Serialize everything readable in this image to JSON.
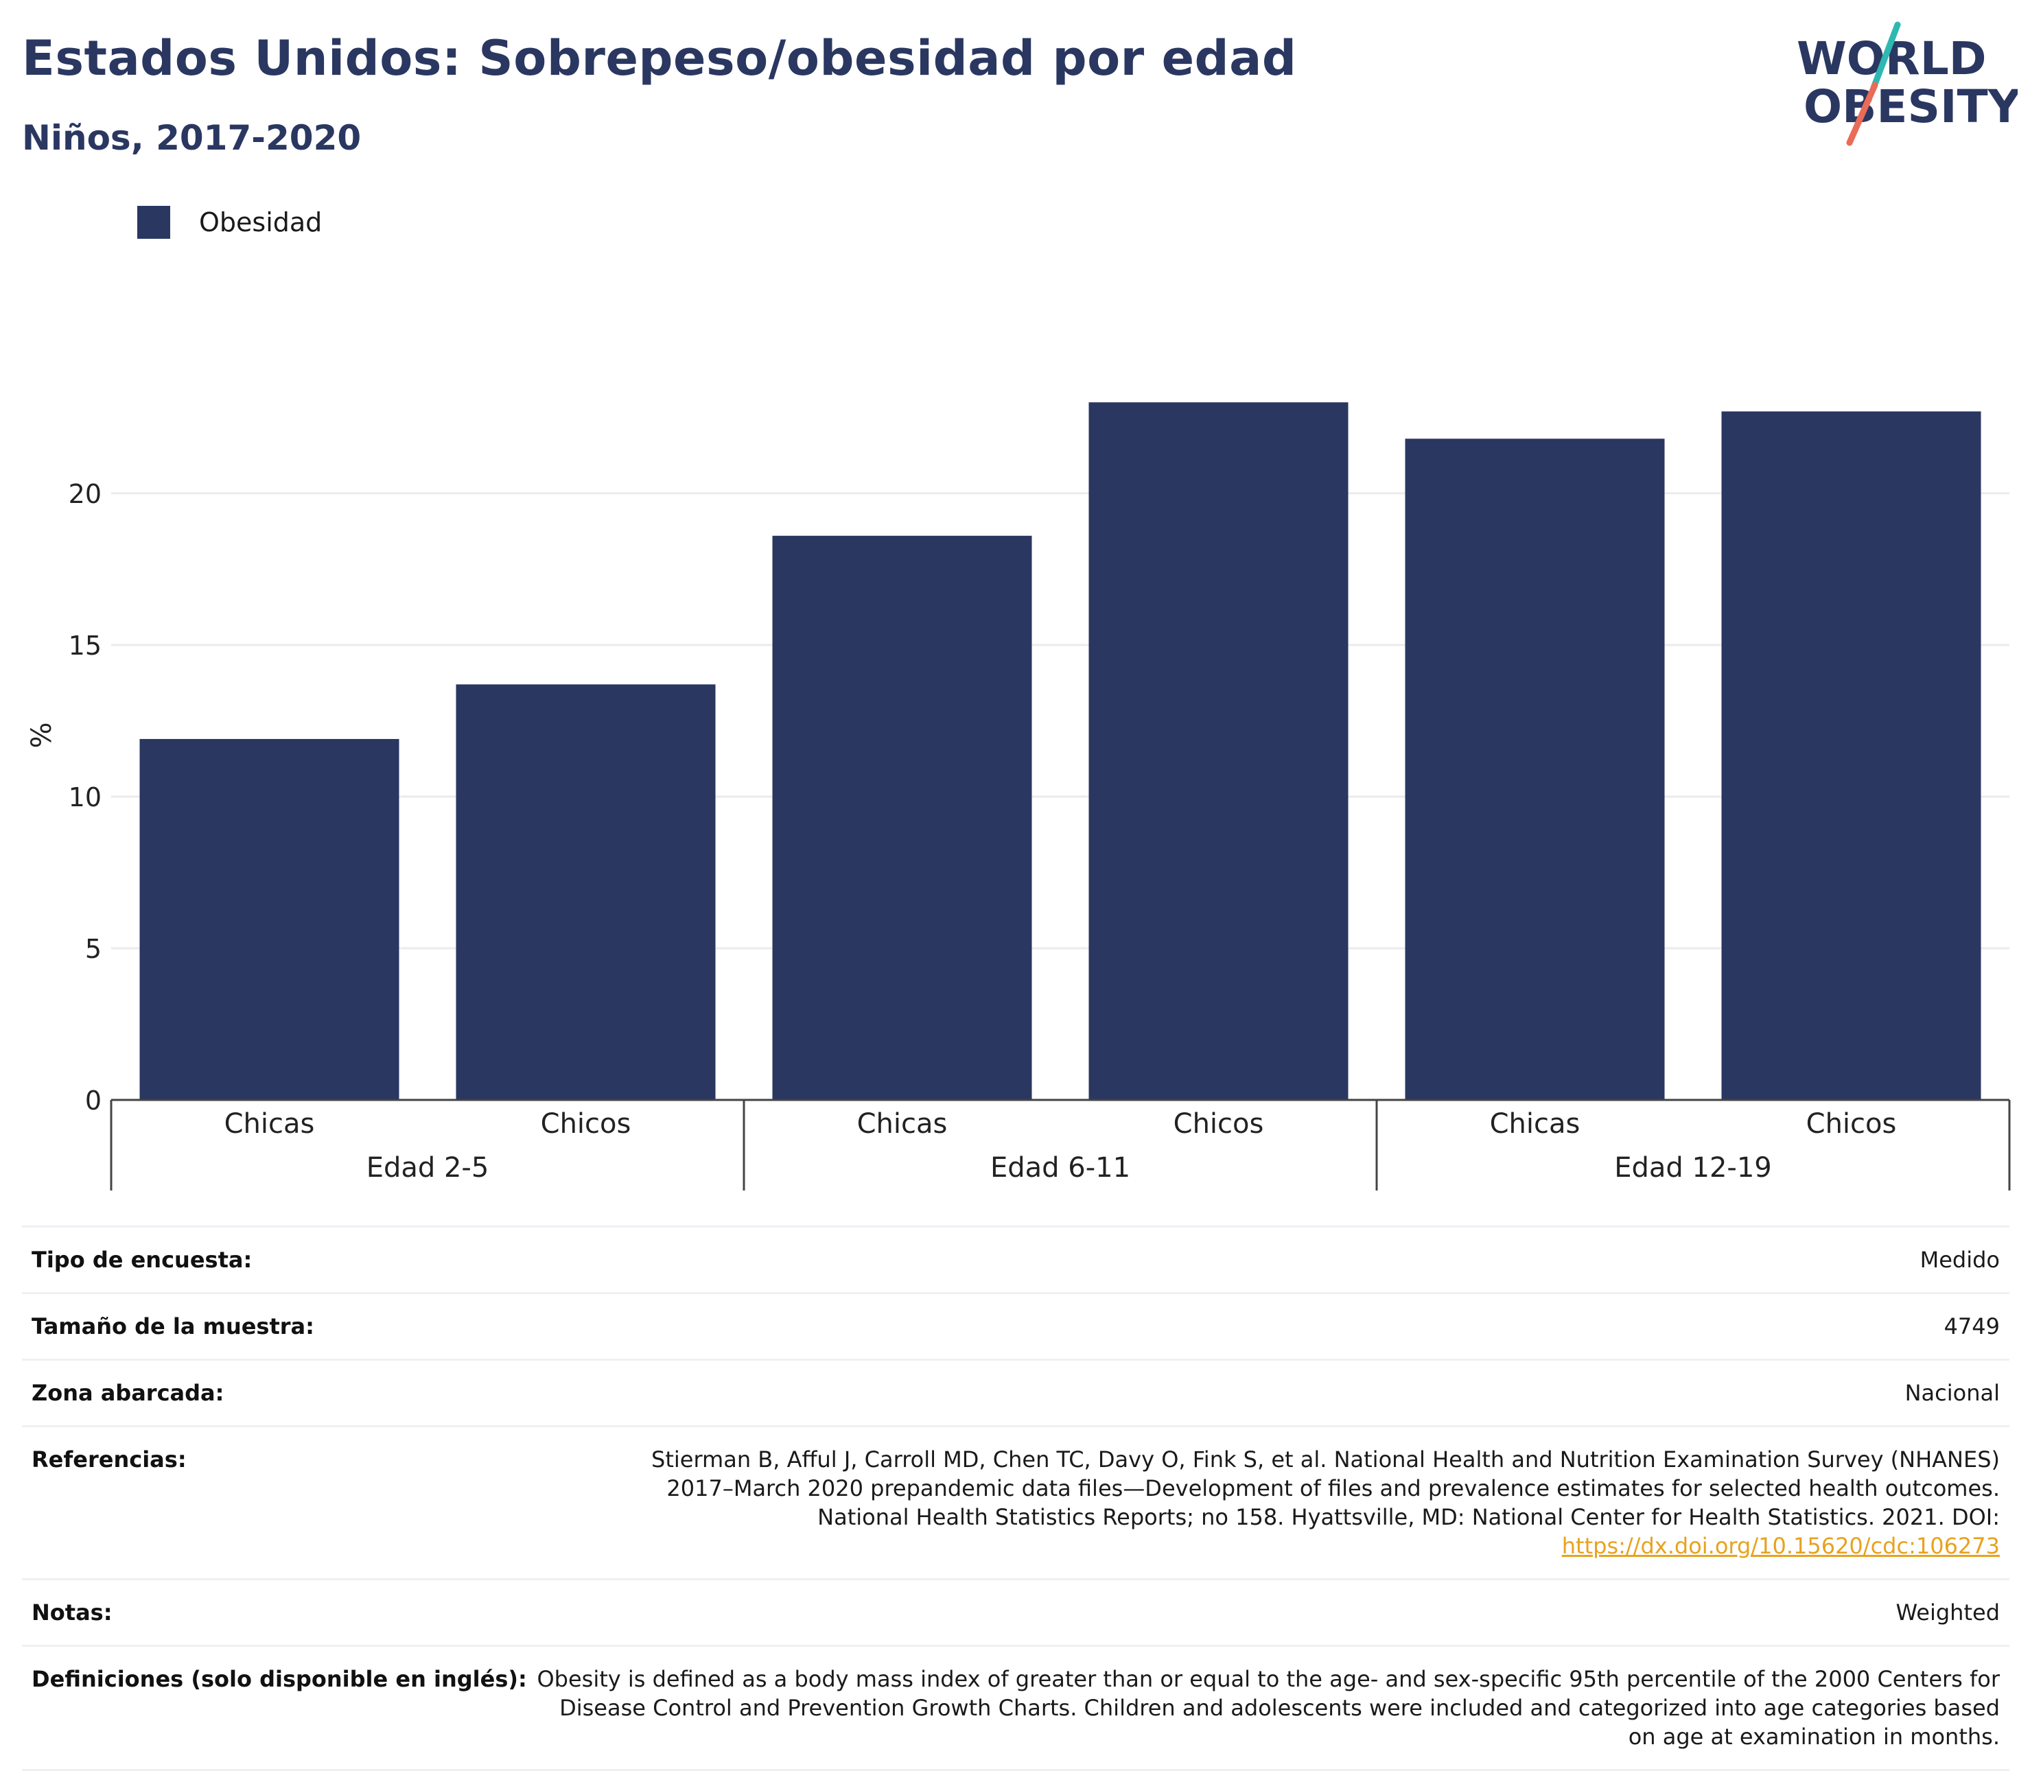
{
  "header": {
    "title": "Estados Unidos: Sobrepeso/obesidad por edad",
    "subtitle": "Niños, 2017-2020"
  },
  "logo": {
    "line1": "WORLD",
    "line2": "OBESITY",
    "icon": "world-obesity-logo"
  },
  "legend": {
    "label": "Obesidad",
    "color": "#2a3761"
  },
  "chart_data": {
    "type": "bar",
    "title": "Estados Unidos: Sobrepeso/obesidad por edad",
    "subtitle": "Niños, 2017-2020",
    "ylabel": "%",
    "ylim": [
      0,
      24.5
    ],
    "yticks": [
      0,
      5,
      10,
      15,
      20
    ],
    "grid": true,
    "legend_position": "top-left",
    "bar_color": "#2a3761",
    "groups": [
      {
        "label": "Edad 2-5",
        "categories": [
          "Chicas",
          "Chicos"
        ],
        "values": [
          11.9,
          13.7
        ]
      },
      {
        "label": "Edad 6-11",
        "categories": [
          "Chicas",
          "Chicos"
        ],
        "values": [
          18.6,
          23.0
        ]
      },
      {
        "label": "Edad 12-19",
        "categories": [
          "Chicas",
          "Chicos"
        ],
        "values": [
          21.8,
          22.7
        ]
      }
    ],
    "series": [
      {
        "name": "Obesidad",
        "values": [
          11.9,
          13.7,
          18.6,
          23.0,
          21.8,
          22.7
        ]
      }
    ]
  },
  "meta": {
    "survey_type": {
      "label": "Tipo de encuesta:",
      "value": "Medido"
    },
    "sample_size": {
      "label": "Tamaño de la muestra:",
      "value": "4749"
    },
    "area": {
      "label": "Zona abarcada:",
      "value": "Nacional"
    },
    "references": {
      "label": "Referencias:",
      "text": "Stierman B, Afful J, Carroll MD, Chen TC, Davy O, Fink S, et al. National Health and Nutrition Examination Survey (NHANES) 2017–March 2020 prepandemic data files—Development of files and prevalence estimates for selected health outcomes. National Health Statistics Reports; no 158. Hyattsville, MD: National Center for Health Statistics. 2021. DOI:",
      "link": "https://dx.doi.org/10.15620/cdc:106273"
    },
    "notes": {
      "label": "Notas:",
      "value": "Weighted"
    },
    "definitions": {
      "label": "Definiciones (solo disponible en inglés):",
      "value": "Obesity is defined as a body mass index of greater than or equal to the age- and sex-specific 95th percentile of the 2000 Centers for Disease Control and Prevention Growth Charts. Children and adolescents were included and categorized into age categories based on age at examination in months."
    }
  }
}
